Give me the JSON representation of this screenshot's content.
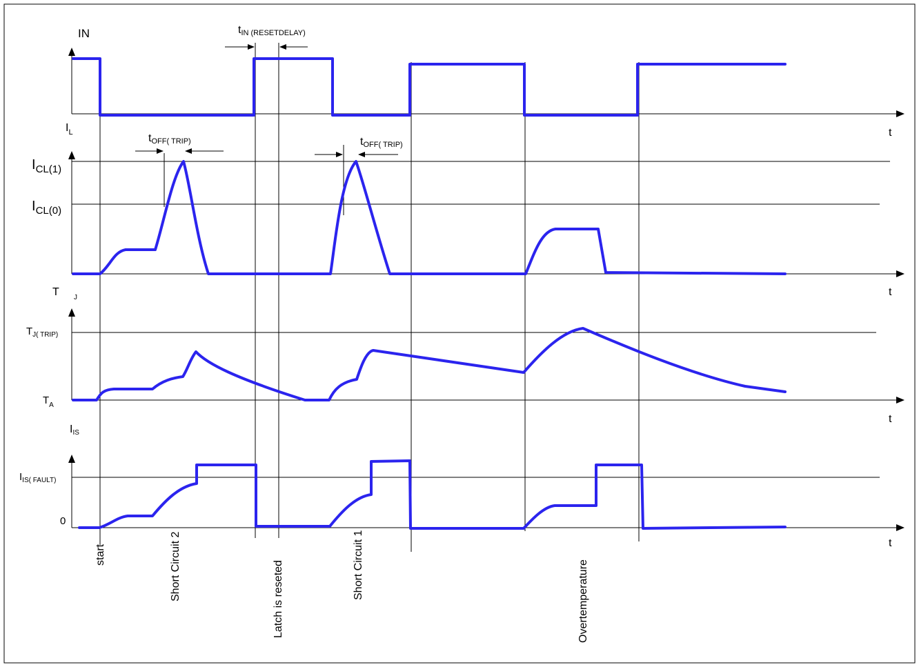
{
  "labels": {
    "in": "IN",
    "t_in_reset": {
      "main": "t",
      "sub": "IN (RESETDELAY)"
    },
    "il": {
      "main": "I",
      "sub": "L"
    },
    "t_off_trip_1": {
      "main": "t",
      "sub": "OFF(  TRIP)"
    },
    "t_off_trip_2": {
      "main": "t",
      "sub": "OFF(  TRIP)"
    },
    "icl1": {
      "main": "I",
      "sub": "CL(1)"
    },
    "icl0": {
      "main": "I",
      "sub": "CL(0)"
    },
    "tj": {
      "main": "T",
      "sub": "J"
    },
    "tj_trip": {
      "main": "T",
      "sub": "J(  TRIP)"
    },
    "ta": {
      "main": "T",
      "sub": "A"
    },
    "iis": {
      "main": "I",
      "sub": "IS"
    },
    "iis_fault": {
      "main": "I",
      "sub": "IS(  FAULT)"
    },
    "zero": "0",
    "t_axis": "t"
  },
  "events": {
    "start": "start",
    "short_circuit_2": "Short Circuit 2",
    "latch_reset": "Latch is reseted",
    "short_circuit_1": "Short Circuit 1",
    "overtemperature": "Overtemperature"
  },
  "colors": {
    "signal": "#2b24ee",
    "axis": "#000000"
  }
}
